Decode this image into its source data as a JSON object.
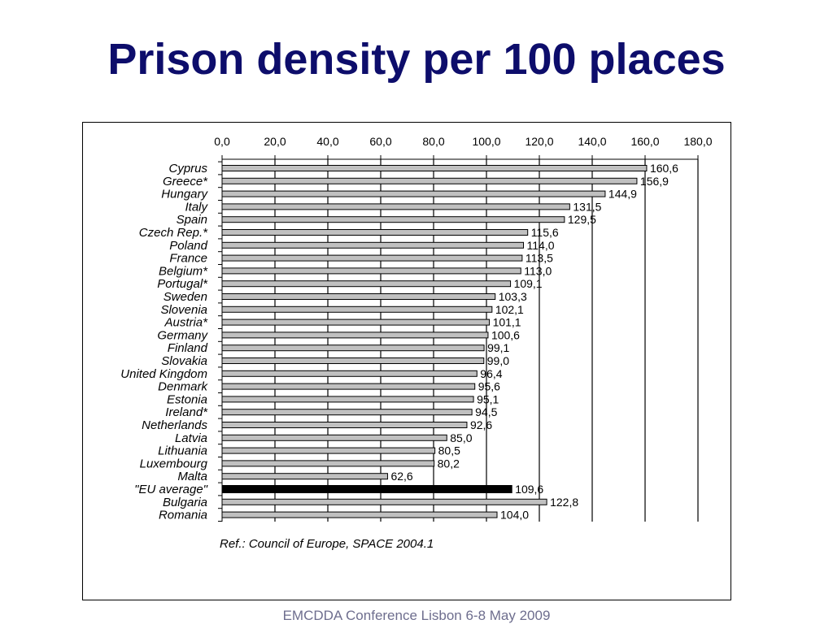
{
  "title": "Prison density per 100 places",
  "source_note": "Ref.: Council of Europe, SPACE 2004.1",
  "footer": "EMCDDA Conference Lisbon 6-8 May 2009",
  "chart_data": {
    "type": "bar",
    "orientation": "horizontal",
    "title": "",
    "xlabel": "",
    "ylabel": "",
    "xlim": [
      0,
      180
    ],
    "x_axis_position": "top",
    "x_ticks": [
      "0,0",
      "20,0",
      "40,0",
      "60,0",
      "80,0",
      "100,0",
      "120,0",
      "140,0",
      "160,0",
      "180,0"
    ],
    "grid": "vertical",
    "legend": "none",
    "categories": [
      "Cyprus",
      "Greece*",
      "Hungary",
      "Italy",
      "Spain",
      "Czech Rep.*",
      "Poland",
      "France",
      "Belgium*",
      "Portugal*",
      "Sweden",
      "Slovenia",
      "Austria*",
      "Germany",
      "Finland",
      "Slovakia",
      "United Kingdom",
      "Denmark",
      "Estonia",
      "Ireland*",
      "Netherlands",
      "Latvia",
      "Lithuania",
      "Luxembourg",
      "Malta",
      "\"EU average\"",
      "Bulgaria",
      "Romania"
    ],
    "values": [
      160.6,
      156.9,
      144.9,
      131.5,
      129.5,
      115.6,
      114.0,
      113.5,
      113.0,
      109.1,
      103.3,
      102.1,
      101.1,
      100.6,
      99.1,
      99.0,
      96.4,
      95.6,
      95.1,
      94.5,
      92.6,
      85.0,
      80.5,
      80.2,
      62.6,
      109.6,
      122.8,
      104.0
    ],
    "value_labels": [
      "160,6",
      "156,9",
      "144,9",
      "131,5",
      "129,5",
      "115,6",
      "114,0",
      "113,5",
      "113,0",
      "109,1",
      "103,3",
      "102,1",
      "101,1",
      "100,6",
      "99,1",
      "99,0",
      "96,4",
      "95,6",
      "95,1",
      "94,5",
      "92,6",
      "85,0",
      "80,5",
      "80,2",
      "62,6",
      "109,6",
      "122,8",
      "104,0"
    ],
    "highlight_index": 25,
    "colors": {
      "bar": "#c0c0c0",
      "highlight": "#000000",
      "bar_edge": "#000000"
    }
  }
}
